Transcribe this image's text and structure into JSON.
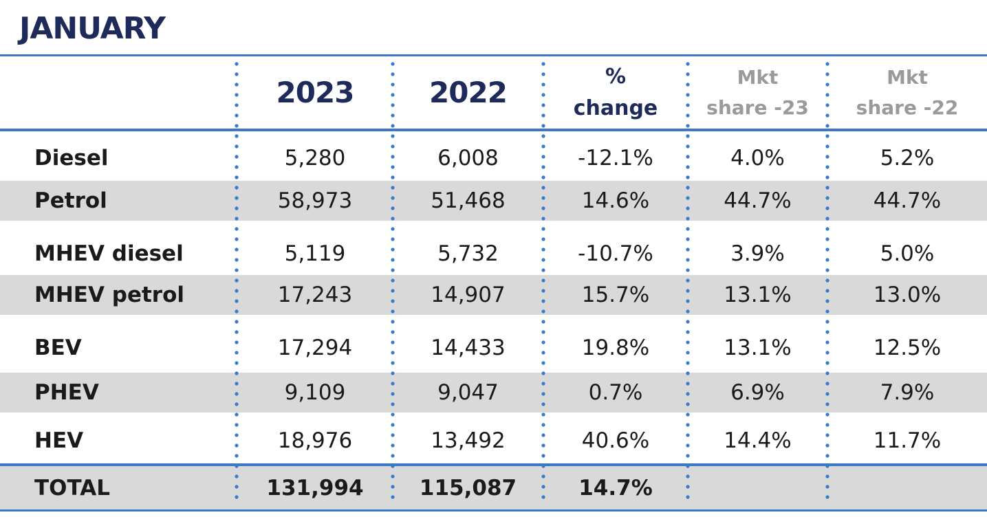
{
  "title": "JANUARY",
  "headers": {
    "y2023": "2023",
    "y2022": "2022",
    "change_line1": "%",
    "change_line2": "change",
    "mkt23_line1": "Mkt",
    "mkt23_line2": "share -23",
    "mkt22_line1": "Mkt",
    "mkt22_line2": "share -22"
  },
  "rows": [
    {
      "label": "Diesel",
      "y2023": "5,280",
      "y2022": "6,008",
      "change": "-12.1%",
      "mkt23": "4.0%",
      "mkt22": "5.2%"
    },
    {
      "label": "Petrol",
      "y2023": "58,973",
      "y2022": "51,468",
      "change": "14.6%",
      "mkt23": "44.7%",
      "mkt22": "44.7%"
    },
    {
      "label": "MHEV diesel",
      "y2023": "5,119",
      "y2022": "5,732",
      "change": "-10.7%",
      "mkt23": "3.9%",
      "mkt22": "5.0%"
    },
    {
      "label": "MHEV petrol",
      "y2023": "17,243",
      "y2022": "14,907",
      "change": "15.7%",
      "mkt23": "13.1%",
      "mkt22": "13.0%"
    },
    {
      "label": "BEV",
      "y2023": "17,294",
      "y2022": "14,433",
      "change": "19.8%",
      "mkt23": "13.1%",
      "mkt22": "12.5%"
    },
    {
      "label": "PHEV",
      "y2023": "9,109",
      "y2022": "9,047",
      "change": "0.7%",
      "mkt23": "6.9%",
      "mkt22": "7.9%"
    },
    {
      "label": "HEV",
      "y2023": "18,976",
      "y2022": "13,492",
      "change": "40.6%",
      "mkt23": "14.4%",
      "mkt22": "11.7%"
    }
  ],
  "total": {
    "label": "TOTAL",
    "y2023": "131,994",
    "y2022": "115,087",
    "change": "14.7%",
    "mkt23": "",
    "mkt22": ""
  },
  "colors": {
    "title": "#1e2a5a",
    "rule": "#3d78c8",
    "shade": "#d9d9d9",
    "mkt_header": "#9a9a9a"
  }
}
